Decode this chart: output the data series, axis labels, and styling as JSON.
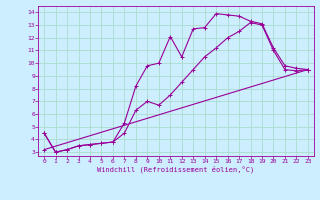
{
  "xlabel": "Windchill (Refroidissement éolien,°C)",
  "background_color": "#cceeff",
  "grid_color": "#aaddcc",
  "line_color": "#990099",
  "xlim": [
    -0.5,
    23.5
  ],
  "ylim": [
    2.7,
    14.5
  ],
  "xticks": [
    0,
    1,
    2,
    3,
    4,
    5,
    6,
    7,
    8,
    9,
    10,
    11,
    12,
    13,
    14,
    15,
    16,
    17,
    18,
    19,
    20,
    21,
    22,
    23
  ],
  "yticks": [
    3,
    4,
    5,
    6,
    7,
    8,
    9,
    10,
    11,
    12,
    13,
    14
  ],
  "series1_x": [
    0,
    1,
    2,
    3,
    4,
    5,
    6,
    7,
    8,
    9,
    10,
    11,
    12,
    13,
    14,
    15,
    16,
    17,
    18,
    19,
    20,
    21,
    22,
    23
  ],
  "series1_y": [
    4.5,
    3.0,
    3.2,
    3.5,
    3.6,
    3.7,
    3.8,
    5.3,
    8.2,
    9.8,
    10.0,
    12.1,
    10.5,
    12.7,
    12.8,
    13.9,
    13.8,
    13.7,
    13.3,
    13.1,
    11.2,
    9.8,
    9.6,
    9.5
  ],
  "series2_x": [
    0,
    1,
    2,
    3,
    4,
    5,
    6,
    7,
    8,
    9,
    10,
    11,
    12,
    13,
    14,
    15,
    16,
    17,
    18,
    19,
    20,
    21,
    22,
    23
  ],
  "series2_y": [
    4.5,
    3.0,
    3.2,
    3.5,
    3.6,
    3.7,
    3.8,
    4.5,
    6.3,
    7.0,
    6.7,
    7.5,
    8.5,
    9.5,
    10.5,
    11.2,
    12.0,
    12.5,
    13.2,
    13.0,
    11.0,
    9.5,
    9.4,
    9.5
  ],
  "series3_x": [
    0,
    23
  ],
  "series3_y": [
    3.2,
    9.5
  ]
}
